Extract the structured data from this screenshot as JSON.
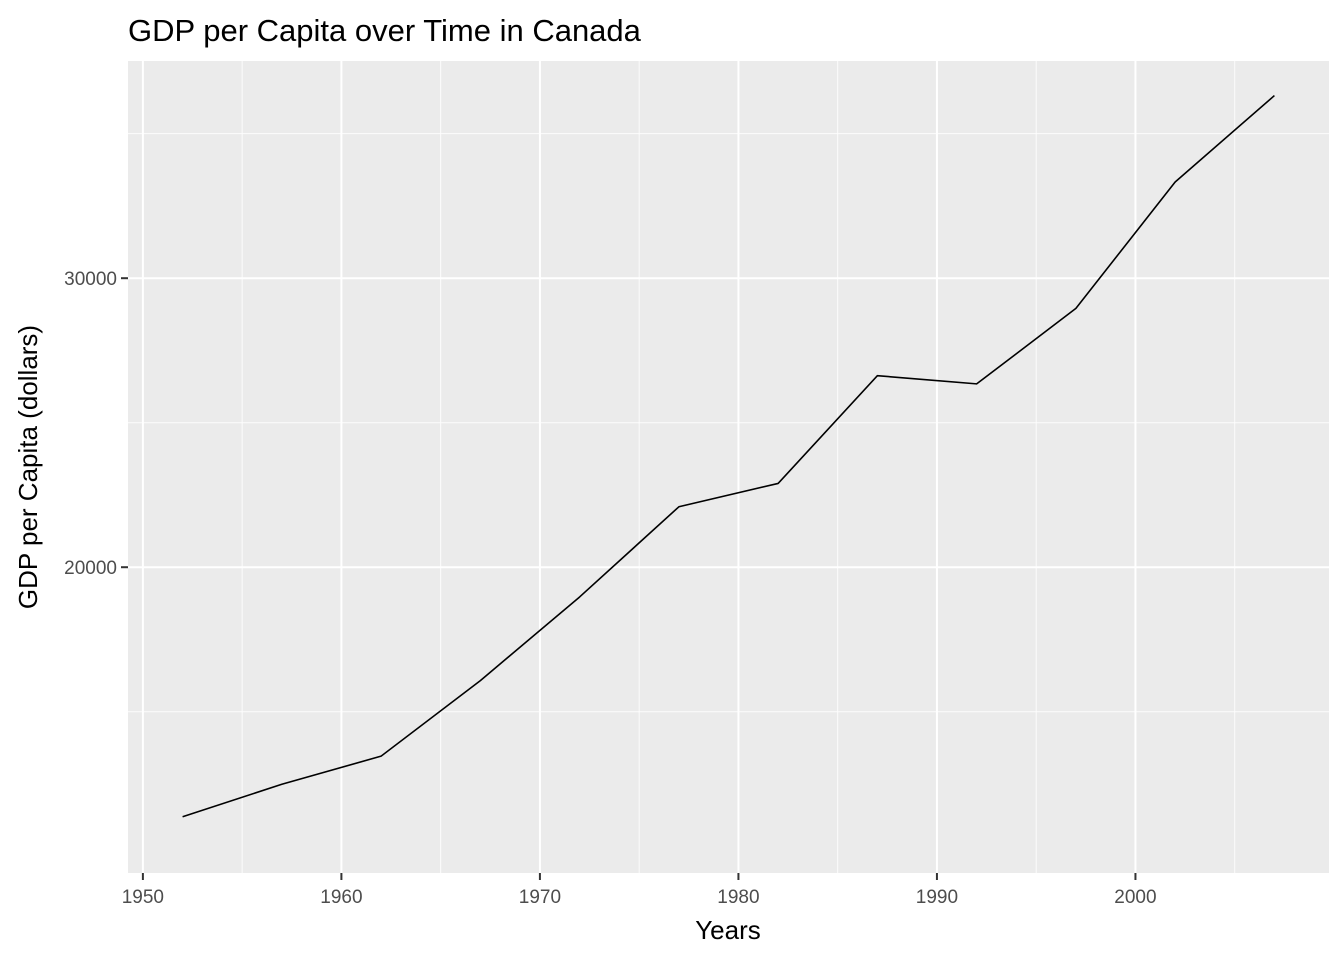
{
  "chart_data": {
    "type": "line",
    "title": "GDP per Capita over Time in Canada",
    "xlabel": "Years",
    "ylabel": "GDP per Capita (dollars)",
    "x": [
      1952,
      1957,
      1962,
      1967,
      1972,
      1977,
      1982,
      1987,
      1992,
      1997,
      2002,
      2007
    ],
    "series": [
      {
        "values": [
          11367.16,
          12489.95,
          13462.49,
          16076.59,
          18970.57,
          22090.88,
          22898.79,
          26626.52,
          26342.88,
          28954.93,
          33328.97,
          36319.24
        ],
        "color": "#000000"
      }
    ],
    "xlim": [
      1949.25,
      2009.75
    ],
    "ylim": [
      9419.55,
      37514.99
    ],
    "x_major_ticks": [
      1950,
      1960,
      1970,
      1980,
      1990,
      2000
    ],
    "x_minor_ticks": [
      1955,
      1965,
      1975,
      1985,
      1995,
      2005
    ],
    "y_major_ticks": [
      20000,
      30000
    ],
    "y_minor_ticks": [
      15000,
      25000,
      35000
    ],
    "x_tick_labels": [
      "1950",
      "1960",
      "1970",
      "1980",
      "1990",
      "2000"
    ],
    "y_tick_labels": [
      "20000",
      "30000"
    ],
    "grid": true,
    "legend": "none",
    "panel_color": "#ebebeb",
    "grid_color": "#ffffff"
  }
}
